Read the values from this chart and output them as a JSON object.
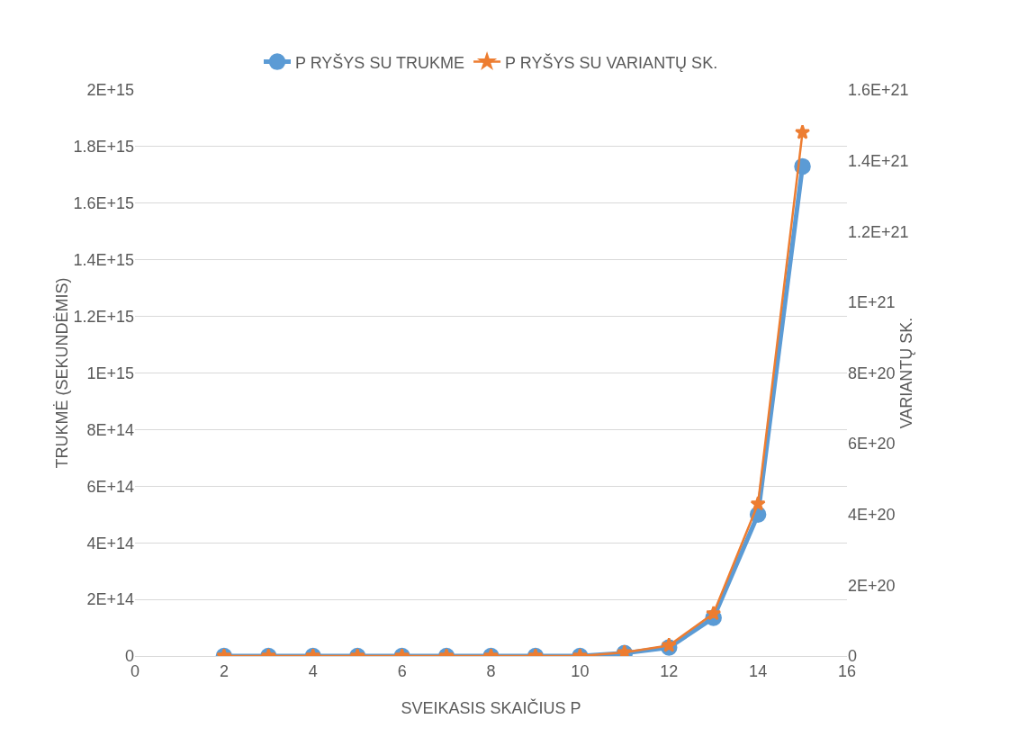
{
  "chart_data": {
    "type": "line",
    "xlabel": "SVEIKASIS SKAIČIUS P",
    "ylabel": "TRUKMĖ (SEKUNDĖMIS)",
    "y2label": "VARIANTŲ SK.",
    "x": [
      2,
      3,
      4,
      5,
      6,
      7,
      8,
      9,
      10,
      11,
      12,
      13,
      14,
      15
    ],
    "series": [
      {
        "name": "P RYŠYS SU TRUKME",
        "color": "#5b9bd5",
        "marker": "circle",
        "values": [
          0,
          0,
          0,
          0,
          0,
          0,
          0,
          0,
          0,
          10000000000000.0,
          30000000000000.0,
          135000000000000.0,
          500000000000000.0,
          1730000000000000.0
        ]
      },
      {
        "name": "P RYŠYS SU VARIANTŲ SK.",
        "color": "#ed7d31",
        "marker": "star",
        "axis": "y2",
        "values": [
          0,
          0,
          0,
          0,
          0,
          0,
          0,
          0,
          0,
          1e+19,
          3e+19,
          1.2e+20,
          4.3e+20,
          1.48e+21
        ]
      }
    ],
    "xlim": [
      0,
      16
    ],
    "xticks": [
      0,
      2,
      4,
      6,
      8,
      10,
      12,
      14,
      16
    ],
    "ylim": [
      0,
      2000000000000000.0
    ],
    "yticks": [
      0,
      {
        "value": 200000000000000.0,
        "label": "2E+14"
      },
      {
        "value": 400000000000000.0,
        "label": "4E+14"
      },
      {
        "value": 600000000000000.0,
        "label": "6E+14"
      },
      {
        "value": 800000000000000.0,
        "label": "8E+14"
      },
      {
        "value": 1000000000000000.0,
        "label": "1E+15"
      },
      {
        "value": 1200000000000000.0,
        "label": "1.2E+15"
      },
      {
        "value": 1400000000000000.0,
        "label": "1.4E+15"
      },
      {
        "value": 1600000000000000.0,
        "label": "1.6E+15"
      },
      {
        "value": 1800000000000000.0,
        "label": "1.8E+15"
      },
      {
        "value": 2000000000000000.0,
        "label": "2E+15"
      }
    ],
    "y2lim": [
      0,
      1.6e+21
    ],
    "y2ticks": [
      0,
      {
        "value": 2e+20,
        "label": "2E+20"
      },
      {
        "value": 4e+20,
        "label": "4E+20"
      },
      {
        "value": 6e+20,
        "label": "6E+20"
      },
      {
        "value": 8e+20,
        "label": "8E+20"
      },
      {
        "value": 1e+21,
        "label": "1E+21"
      },
      {
        "value": 1.2e+21,
        "label": "1.2E+21"
      },
      {
        "value": 1.4e+21,
        "label": "1.4E+21"
      },
      {
        "value": 1.6e+21,
        "label": "1.6E+21"
      }
    ],
    "grid": "y",
    "legend": "top",
    "line_style": "solid"
  }
}
